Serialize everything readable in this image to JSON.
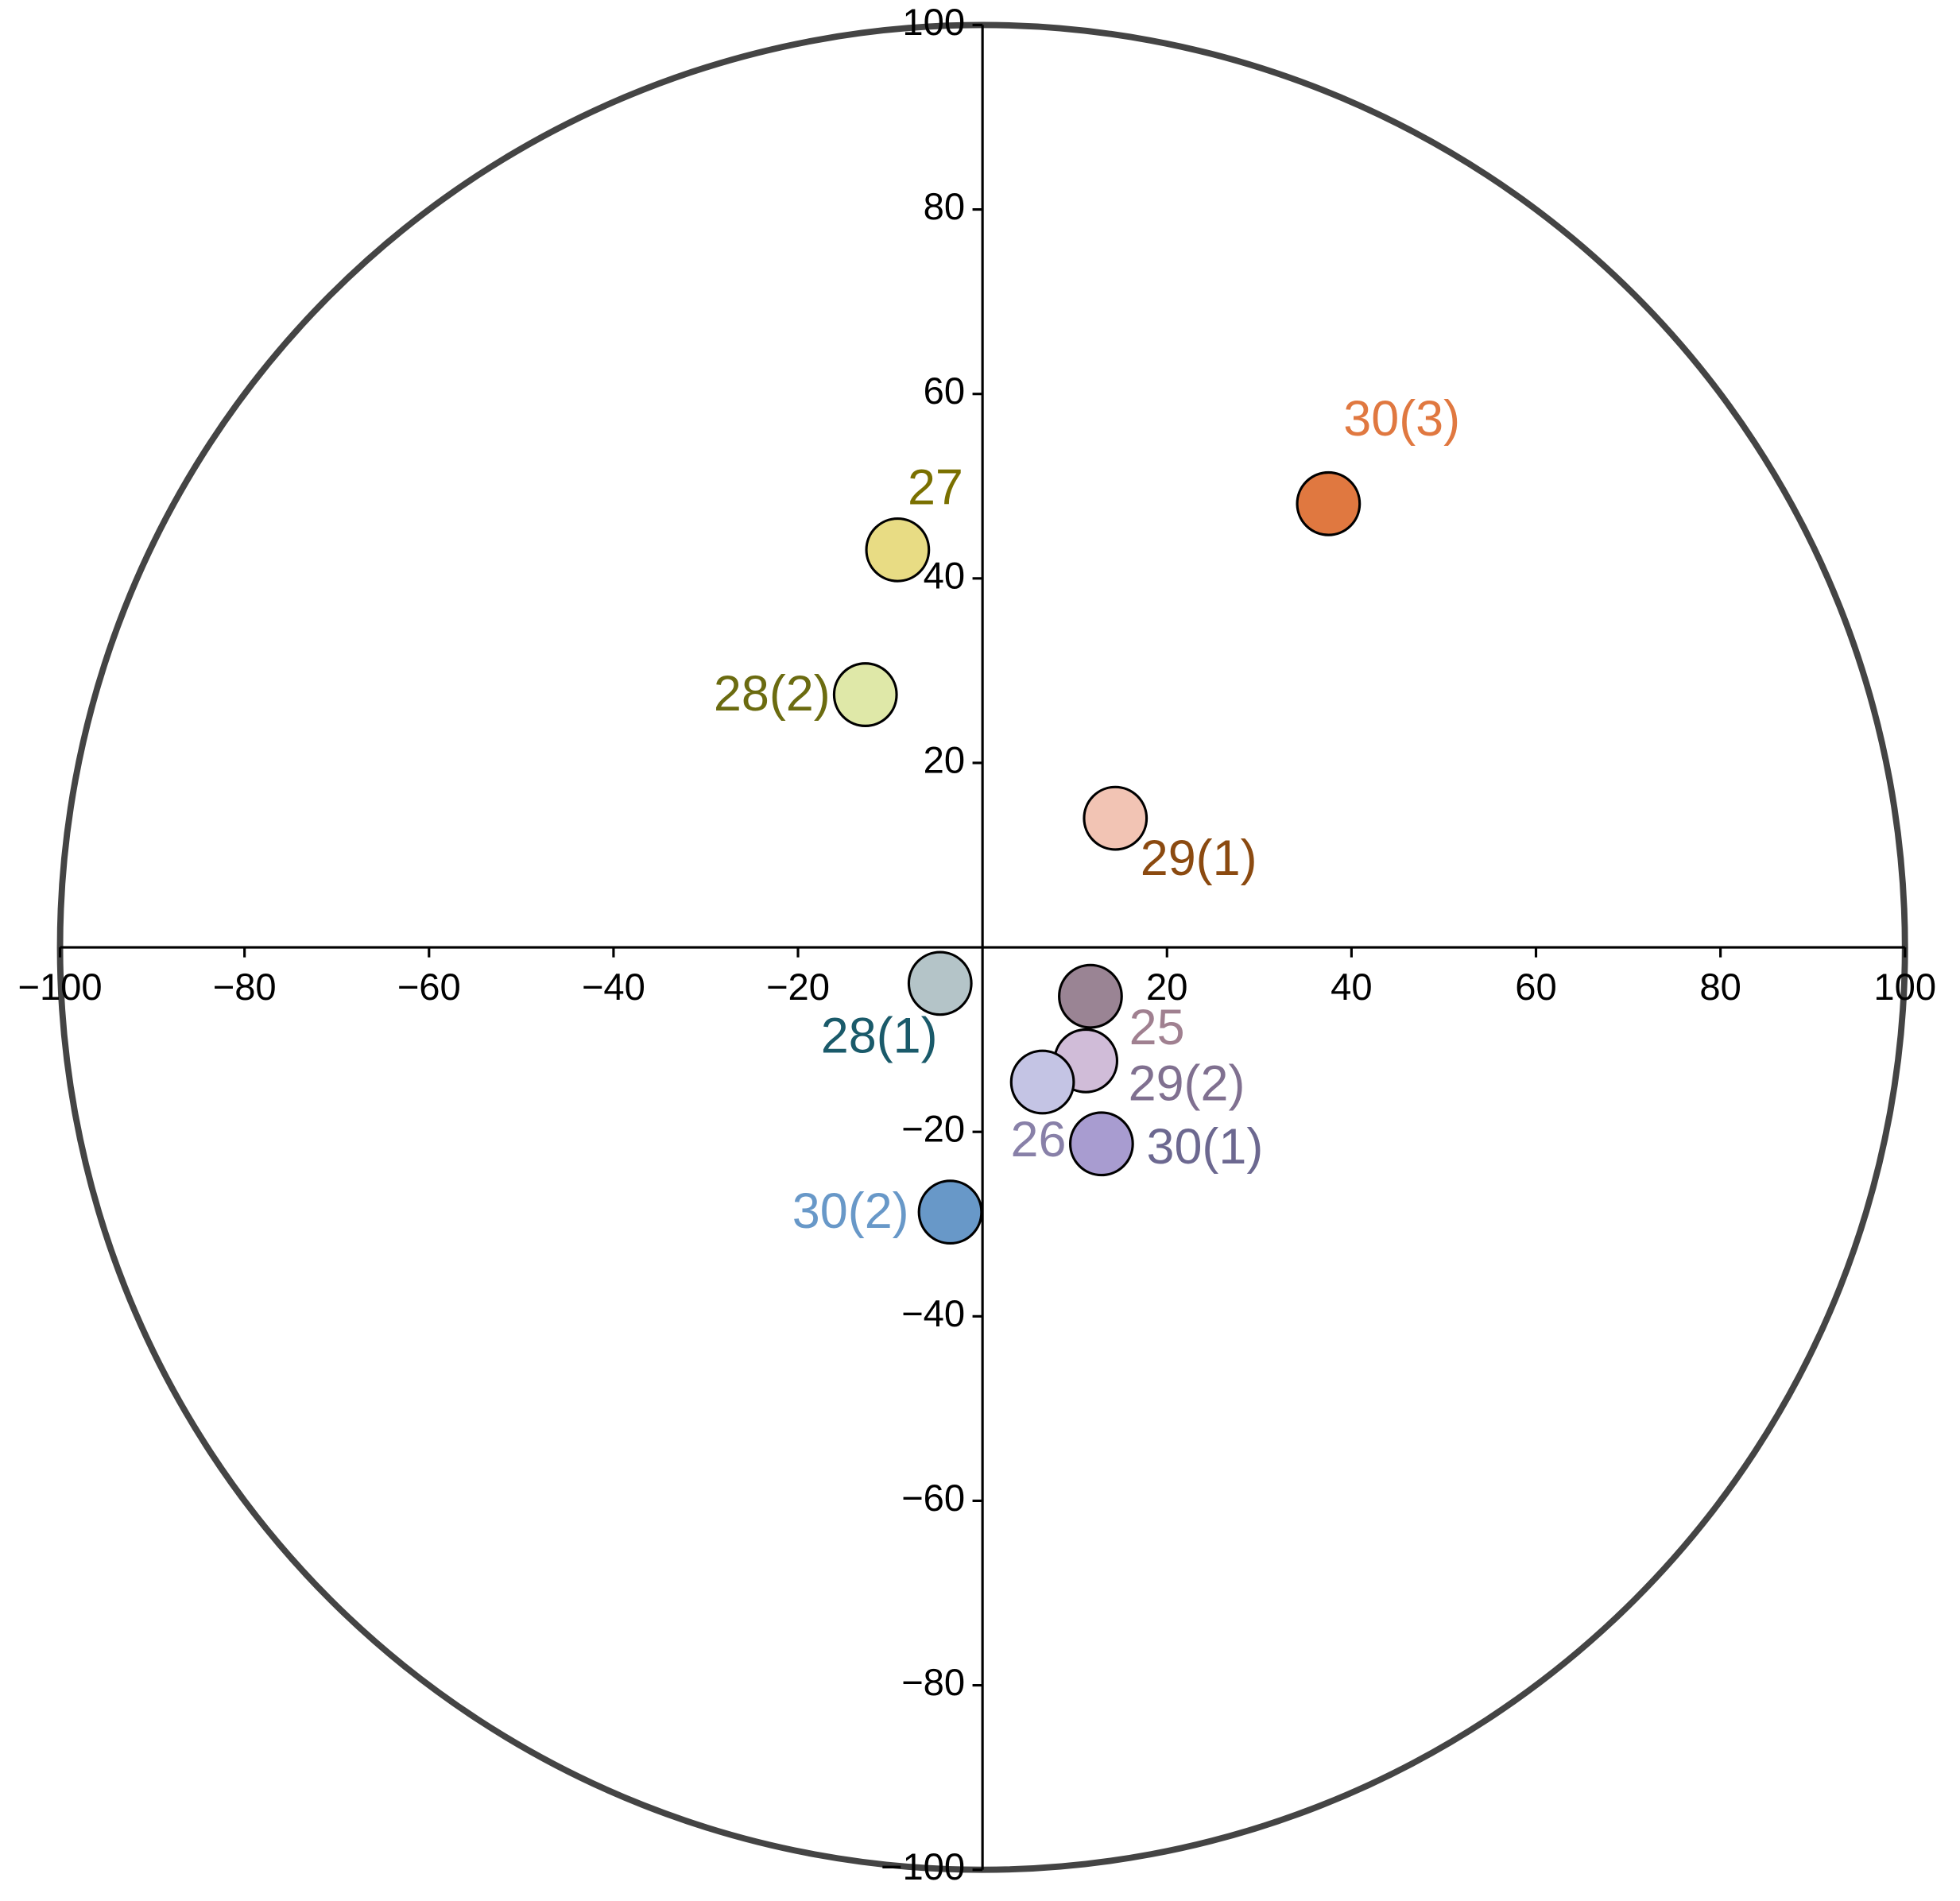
{
  "chart_data": {
    "type": "scatter",
    "xlim": [
      -100,
      100
    ],
    "ylim": [
      -100,
      100
    ],
    "xticks": [
      {
        "value": -100,
        "label": "−100"
      },
      {
        "value": -80,
        "label": "−80"
      },
      {
        "value": -60,
        "label": "−60"
      },
      {
        "value": -40,
        "label": "−40"
      },
      {
        "value": -20,
        "label": "−20"
      },
      20,
      40,
      60,
      80,
      100
    ],
    "yticks": [
      {
        "value": -100,
        "label": "−100"
      },
      {
        "value": -80,
        "label": "−80"
      },
      {
        "value": -60,
        "label": "−60"
      },
      {
        "value": -40,
        "label": "−40"
      },
      {
        "value": -20,
        "label": "−20"
      },
      20,
      40,
      60,
      80,
      100
    ],
    "points": [
      {
        "label": "30(3)",
        "x": 37.5,
        "y": 48.1,
        "color": "#e07840",
        "label_color": "#e07840"
      },
      {
        "label": "27",
        "x": -9.2,
        "y": 43.1,
        "color": "#e8dc84",
        "label_color": "#7a7000"
      },
      {
        "label": "28(2)",
        "x": -12.7,
        "y": 27.4,
        "color": "#dfe8a8",
        "label_color": "#6b6b10"
      },
      {
        "label": "29(1)",
        "x": 14.4,
        "y": 14.0,
        "color": "#f2c4b4",
        "label_color": "#8b4a10"
      },
      {
        "label": "28(1)",
        "x": -4.6,
        "y": -3.9,
        "color": "#b4c4c8",
        "label_color": "#1a5a6a"
      },
      {
        "label": "25",
        "x": 11.7,
        "y": -5.3,
        "color": "#9a8494",
        "label_color": "#a08090"
      },
      {
        "label": "29(2)",
        "x": 11.2,
        "y": -12.3,
        "color": "#d0bcd8",
        "label_color": "#807090"
      },
      {
        "label": "26",
        "x": 6.5,
        "y": -14.6,
        "color": "#c4c4e4",
        "label_color": "#8880a8"
      },
      {
        "label": "30(1)",
        "x": 12.9,
        "y": -21.3,
        "color": "#a89cd0",
        "label_color": "#6c6890"
      },
      {
        "label": "30(2)",
        "x": -3.5,
        "y": -28.7,
        "color": "#6898c8",
        "label_color": "#6898c8"
      }
    ]
  }
}
